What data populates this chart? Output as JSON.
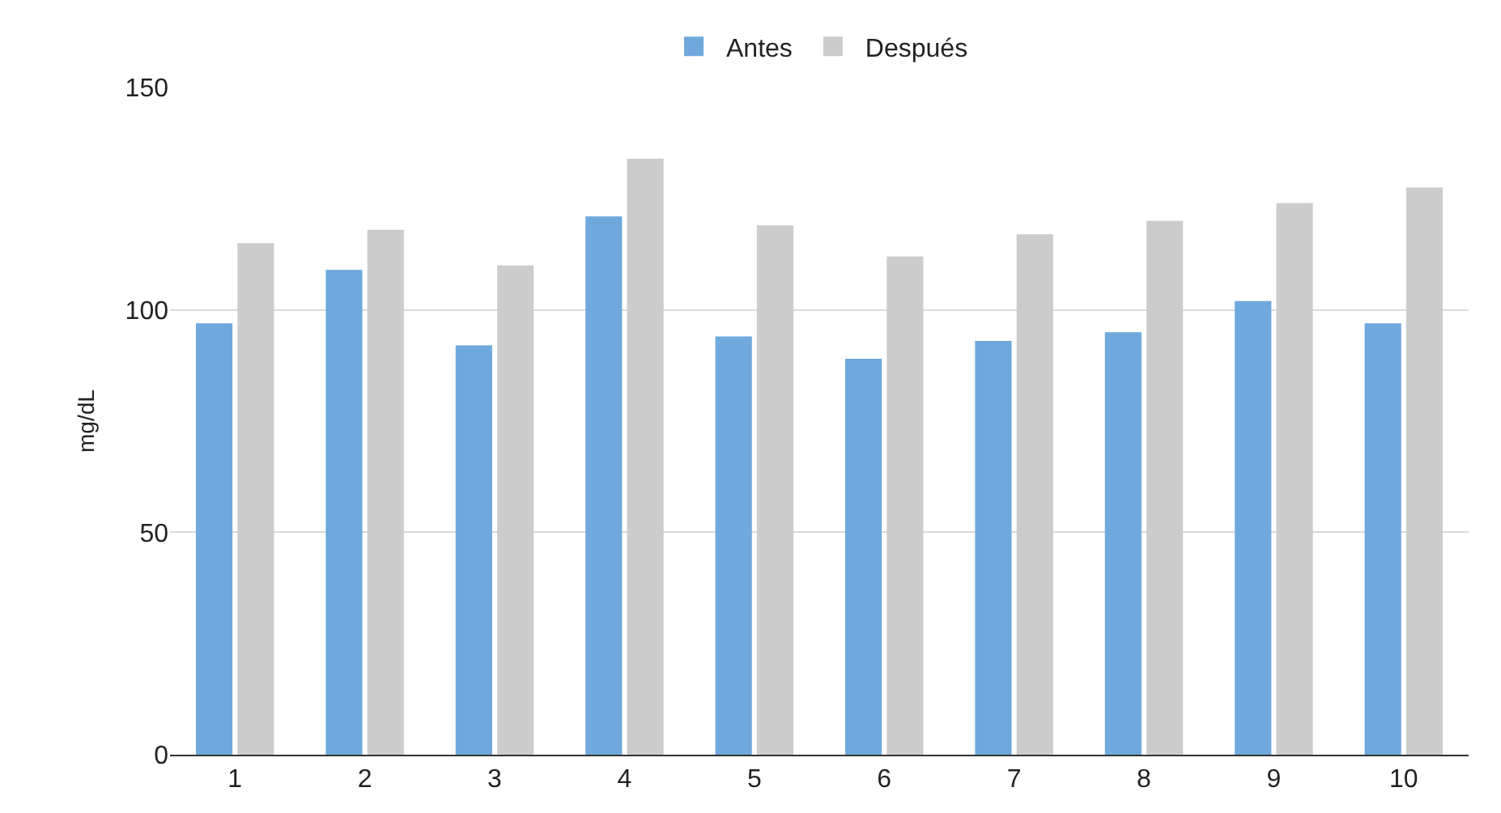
{
  "chart_data": {
    "type": "bar",
    "ylabel": "mg/dL",
    "categories": [
      "1",
      "2",
      "3",
      "4",
      "5",
      "6",
      "7",
      "8",
      "9",
      "10"
    ],
    "series": [
      {
        "name": "Antes",
        "color": "#6fa8dc",
        "values": [
          97,
          109,
          92,
          121,
          94,
          89,
          93,
          95,
          102,
          97
        ]
      },
      {
        "name": "Después",
        "color": "#cccccc",
        "values": [
          115,
          118,
          110,
          134,
          119,
          112,
          117,
          120,
          124,
          127.5
        ]
      }
    ],
    "ylim": [
      0,
      150
    ],
    "yticks": [
      0,
      50,
      100,
      150
    ],
    "grid": "y",
    "legend": "top"
  }
}
